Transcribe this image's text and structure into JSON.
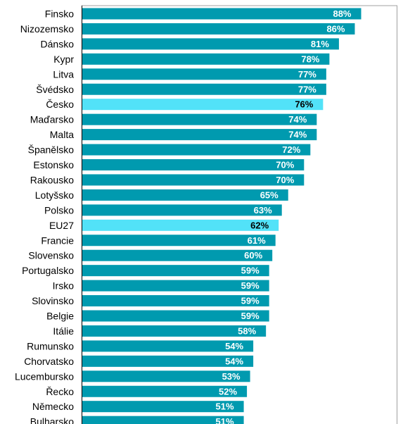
{
  "chart_data": {
    "type": "bar",
    "orientation": "horizontal",
    "title": "",
    "xlabel": "",
    "ylabel": "",
    "xlim": [
      0,
      100
    ],
    "grid": false,
    "legend": "none",
    "value_suffix": "%",
    "bar_color": "#009AAF",
    "highlight_color": "#52E2F8",
    "highlight_categories": [
      "Česko",
      "EU27"
    ],
    "categories": [
      "Finsko",
      "Nizozemsko",
      "Dánsko",
      "Kypr",
      "Litva",
      "Švédsko",
      "Česko",
      "Maďarsko",
      "Malta",
      "Španělsko",
      "Estonsko",
      "Rakousko",
      "Lotyšsko",
      "Polsko",
      "EU27",
      "Francie",
      "Slovensko",
      "Portugalsko",
      "Irsko",
      "Slovinsko",
      "Belgie",
      "Itálie",
      "Rumunsko",
      "Chorvatsko",
      "Lucembursko",
      "Řecko",
      "Německo",
      "Bulharsko"
    ],
    "values": [
      88,
      86,
      81,
      78,
      77,
      77,
      76,
      74,
      74,
      72,
      70,
      70,
      65,
      63,
      62,
      61,
      60,
      59,
      59,
      59,
      59,
      58,
      54,
      54,
      53,
      52,
      51,
      51
    ],
    "value_labels": [
      "88%",
      "86%",
      "81%",
      "78%",
      "77%",
      "77%",
      "76%",
      "74%",
      "74%",
      "72%",
      "70%",
      "70%",
      "65%",
      "63%",
      "62%",
      "61%",
      "60%",
      "59%",
      "59%",
      "59%",
      "59%",
      "58%",
      "54%",
      "54%",
      "53%",
      "52%",
      "51%",
      "51%"
    ]
  }
}
